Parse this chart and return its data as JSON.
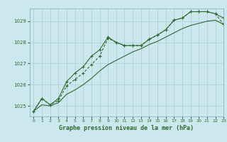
{
  "title": "Graphe pression niveau de la mer (hPa)",
  "background_color": "#cce8ee",
  "grid_color": "#aacdd5",
  "line_color": "#2d6a2d",
  "xlim": [
    -0.5,
    23
  ],
  "ylim": [
    1024.5,
    1029.6
  ],
  "xticks": [
    0,
    1,
    2,
    3,
    4,
    5,
    6,
    7,
    8,
    9,
    10,
    11,
    12,
    13,
    14,
    15,
    16,
    17,
    18,
    19,
    20,
    21,
    22,
    23
  ],
  "yticks": [
    1025,
    1026,
    1027,
    1028,
    1029
  ],
  "line1_x": [
    0,
    1,
    2,
    3,
    4,
    5,
    6,
    7,
    8,
    9,
    10,
    11,
    12,
    13,
    14,
    15,
    16,
    17,
    18,
    19,
    20,
    21,
    22,
    23
  ],
  "line1_y": [
    1024.75,
    1025.35,
    1025.05,
    1025.35,
    1026.15,
    1026.55,
    1026.85,
    1027.35,
    1027.65,
    1028.25,
    1028.0,
    1027.85,
    1027.85,
    1027.85,
    1028.15,
    1028.35,
    1028.6,
    1029.05,
    1029.15,
    1029.45,
    1029.45,
    1029.45,
    1029.35,
    1029.15
  ],
  "line2_x": [
    0,
    1,
    2,
    3,
    4,
    5,
    6,
    7,
    8,
    9,
    10,
    11,
    12,
    13,
    14,
    15,
    16,
    17,
    18,
    19,
    20,
    21,
    22,
    23
  ],
  "line2_y": [
    1024.75,
    1025.35,
    1025.05,
    1025.25,
    1025.95,
    1026.25,
    1026.55,
    1026.95,
    1027.35,
    1028.2,
    1028.0,
    1027.85,
    1027.85,
    1027.85,
    1028.15,
    1028.35,
    1028.6,
    1029.05,
    1029.15,
    1029.45,
    1029.45,
    1029.45,
    1029.35,
    1028.85
  ],
  "line3_x": [
    0,
    1,
    2,
    3,
    4,
    5,
    6,
    7,
    8,
    9,
    10,
    11,
    12,
    13,
    14,
    15,
    16,
    17,
    18,
    19,
    20,
    21,
    22,
    23
  ],
  "line3_y": [
    1024.75,
    1025.05,
    1025.0,
    1025.15,
    1025.55,
    1025.75,
    1026.0,
    1026.3,
    1026.65,
    1026.95,
    1027.15,
    1027.35,
    1027.55,
    1027.7,
    1027.9,
    1028.05,
    1028.25,
    1028.45,
    1028.65,
    1028.8,
    1028.9,
    1029.0,
    1029.05,
    1028.85
  ]
}
